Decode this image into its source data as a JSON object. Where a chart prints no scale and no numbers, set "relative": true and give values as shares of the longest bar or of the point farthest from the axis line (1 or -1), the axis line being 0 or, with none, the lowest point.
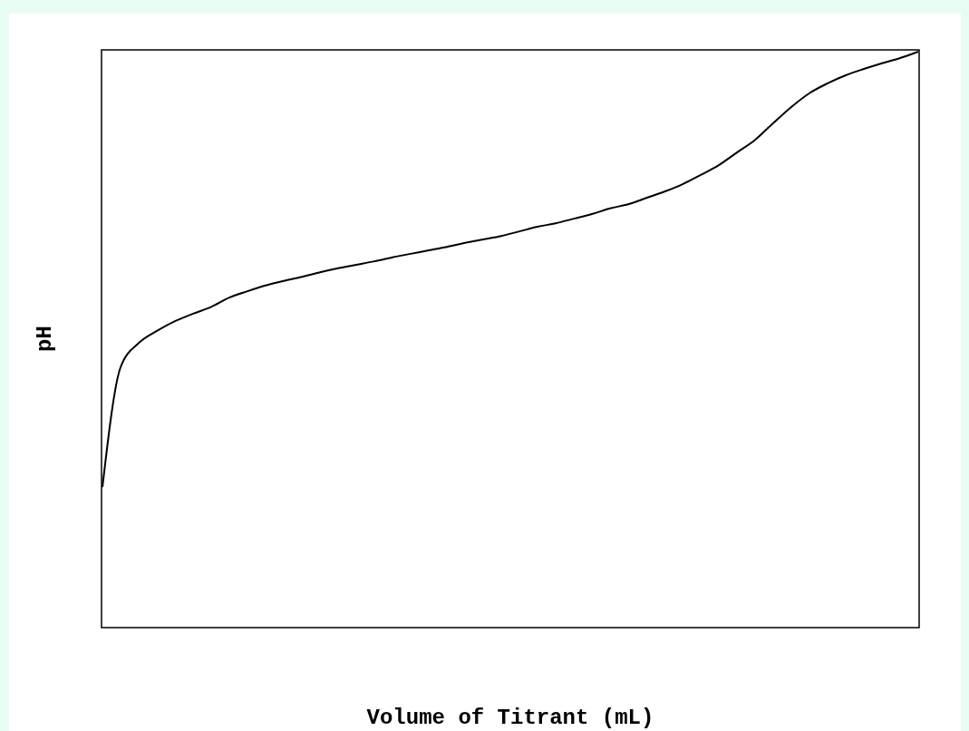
{
  "chart_data": {
    "type": "line",
    "xlabel": "Volume of Titrant (mL)",
    "ylabel": "pH",
    "relative": true,
    "color": "#000000",
    "categories": [
      null,
      null,
      null,
      null,
      null,
      null,
      null,
      null,
      null,
      null,
      null,
      null,
      null,
      null,
      null,
      null,
      null,
      null,
      null,
      null,
      null,
      null,
      null,
      null,
      null,
      null,
      null,
      null,
      null,
      null,
      null,
      null,
      null,
      null,
      null,
      null,
      null,
      null,
      null,
      null,
      null,
      null,
      null,
      null,
      null,
      null
    ],
    "values": [
      0.244,
      0.452,
      0.494,
      0.515,
      0.532,
      0.545,
      0.557,
      0.573,
      0.584,
      0.594,
      0.602,
      0.609,
      0.617,
      0.624,
      0.63,
      0.636,
      0.643,
      0.649,
      0.655,
      0.661,
      0.668,
      0.674,
      0.68,
      0.688,
      0.696,
      0.702,
      0.71,
      0.718,
      0.728,
      0.735,
      0.746,
      0.757,
      0.77,
      0.786,
      0.803,
      0.825,
      0.847,
      0.876,
      0.904,
      0.928,
      0.945,
      0.959,
      0.97,
      0.98,
      0.989,
      1
    ]
  }
}
